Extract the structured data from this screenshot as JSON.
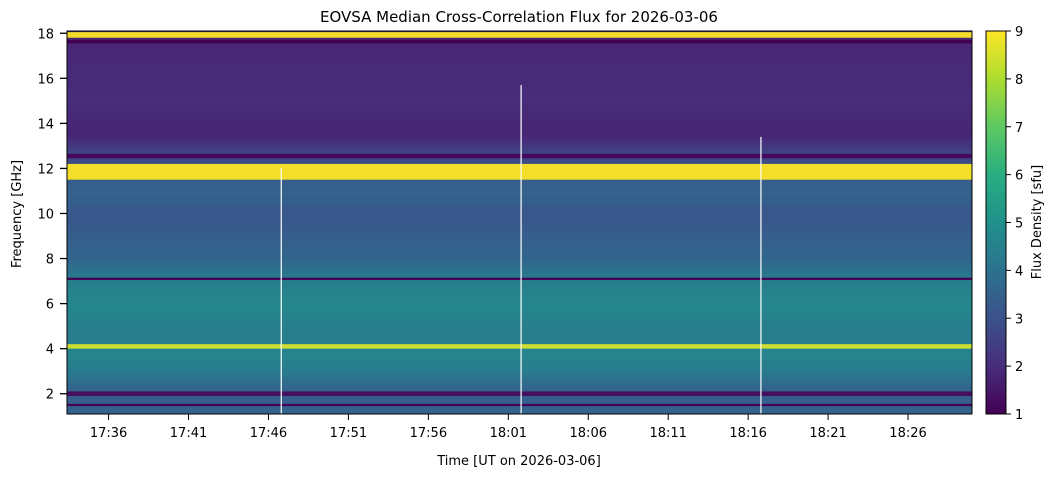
{
  "chart_data": {
    "type": "heatmap",
    "title": "EOVSA Median Cross-Correlation Flux for 2026-03-06",
    "xlabel": "Time [UT on 2026-03-06]",
    "ylabel": "Frequency [GHz]",
    "colorbar_label": "Flux Density [sfu]",
    "colormap": "viridis",
    "x_tick_labels": [
      "17:36",
      "17:41",
      "17:46",
      "17:51",
      "17:56",
      "18:01",
      "18:06",
      "18:11",
      "18:16",
      "18:21",
      "18:26"
    ],
    "x_tick_minutes": [
      1056,
      1061,
      1066,
      1071,
      1076,
      1081,
      1086,
      1091,
      1096,
      1101,
      1106
    ],
    "xlim_minutes": [
      1053.4,
      1110.0
    ],
    "y_ticks": [
      2,
      4,
      6,
      8,
      10,
      12,
      14,
      16,
      18
    ],
    "ylim": [
      1.1,
      18.1
    ],
    "colorbar_ticks": [
      1,
      2,
      3,
      4,
      5,
      6,
      7,
      8,
      9
    ],
    "clim": [
      1,
      9
    ],
    "background_profile": [
      {
        "freq": 1.1,
        "flux": 3.6
      },
      {
        "freq": 2.0,
        "flux": 3.3
      },
      {
        "freq": 3.0,
        "flux": 4.3
      },
      {
        "freq": 3.8,
        "flux": 4.6
      },
      {
        "freq": 4.2,
        "flux": 4.4
      },
      {
        "freq": 5.0,
        "flux": 4.4
      },
      {
        "freq": 6.0,
        "flux": 4.7
      },
      {
        "freq": 7.0,
        "flux": 4.4
      },
      {
        "freq": 8.0,
        "flux": 3.6
      },
      {
        "freq": 9.0,
        "flux": 3.4
      },
      {
        "freq": 10.0,
        "flux": 3.1
      },
      {
        "freq": 11.0,
        "flux": 3.6
      },
      {
        "freq": 12.7,
        "flux": 2.6
      },
      {
        "freq": 13.5,
        "flux": 1.8
      },
      {
        "freq": 15.0,
        "flux": 2.0
      },
      {
        "freq": 17.0,
        "flux": 1.9
      },
      {
        "freq": 18.1,
        "flux": 1.8
      }
    ],
    "bright_bands": [
      {
        "freq_low": 11.5,
        "freq_high": 12.2,
        "flux": 9
      },
      {
        "freq_low": 17.8,
        "freq_high": 18.05,
        "flux": 9
      },
      {
        "freq_low": 4.0,
        "freq_high": 4.2,
        "flux": 8.5
      }
    ],
    "dark_bands": [
      {
        "freq_low": 1.45,
        "freq_high": 1.55,
        "flux": 1
      },
      {
        "freq_low": 1.9,
        "freq_high": 2.1,
        "flux": 1.3
      },
      {
        "freq_low": 7.05,
        "freq_high": 7.15,
        "flux": 1
      },
      {
        "freq_low": 12.45,
        "freq_high": 12.65,
        "flux": 1.2
      },
      {
        "freq_low": 17.55,
        "freq_high": 17.7,
        "flux": 1
      }
    ],
    "spikes": [
      {
        "time_minute": 1066.8,
        "freq_low": 1.1,
        "freq_high": 12.0
      },
      {
        "time_minute": 1081.8,
        "freq_low": 1.1,
        "freq_high": 15.7
      },
      {
        "time_minute": 1096.8,
        "freq_low": 1.1,
        "freq_high": 13.4
      }
    ]
  }
}
